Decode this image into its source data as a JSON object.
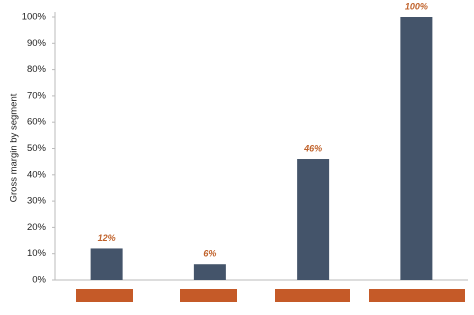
{
  "chart_data": {
    "type": "bar",
    "y_label": "Gross margin by segment",
    "categories": [
      null,
      null,
      null,
      null
    ],
    "values": [
      12,
      6,
      46,
      100
    ],
    "value_labels": [
      "12%",
      "6%",
      "46%",
      "100%"
    ],
    "color": "#44546a",
    "ylim": [
      0,
      100
    ],
    "yticks": [
      {
        "value": 0,
        "label": "0%"
      },
      {
        "value": 10,
        "label": "10%"
      },
      {
        "value": 20,
        "label": "20%"
      },
      {
        "value": 30,
        "label": "30%"
      },
      {
        "value": 40,
        "label": "40%"
      },
      {
        "value": 50,
        "label": "50%"
      },
      {
        "value": 60,
        "label": "60%"
      },
      {
        "value": 70,
        "label": "70%"
      },
      {
        "value": 80,
        "label": "80%"
      },
      {
        "value": 90,
        "label": "90%"
      },
      {
        "value": 100,
        "label": "100%"
      }
    ],
    "grid": false
  }
}
